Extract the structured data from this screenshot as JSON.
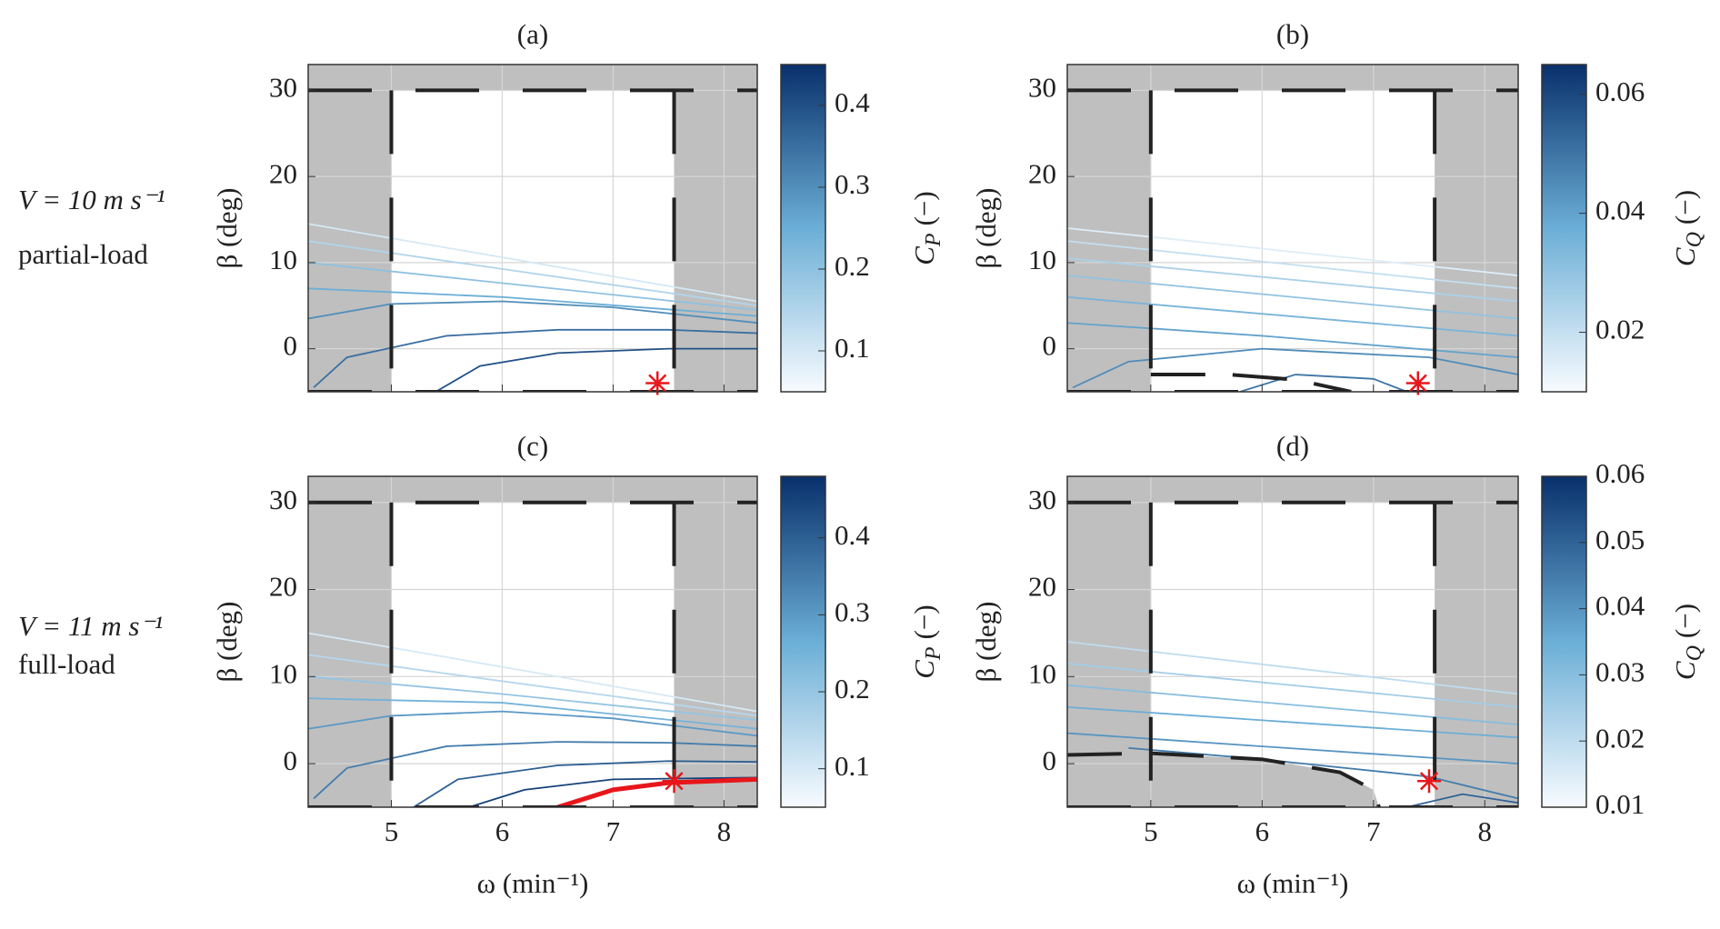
{
  "row_labels": [
    {
      "condition": "V = 10 m s⁻¹",
      "regime": "partial-load"
    },
    {
      "condition": "V = 11 m s⁻¹",
      "regime": "full-load"
    }
  ],
  "chart_data": [
    {
      "type": "contour",
      "title": "(a)",
      "ylabel": "β (deg)",
      "xlim": [
        4.25,
        8.3
      ],
      "ylim": [
        -5,
        33
      ],
      "xticks": [
        5,
        6,
        7,
        8
      ],
      "yticks": [
        0,
        10,
        20,
        30
      ],
      "grid": true,
      "bounds": {
        "omega": [
          5,
          7.55
        ],
        "beta": [
          -5,
          30
        ]
      },
      "optimum": {
        "x": 7.4,
        "y": -4,
        "color": "#e8161b"
      },
      "colorbar": {
        "symbol": "C",
        "subscript": "P",
        "unit": "(−)",
        "lim": [
          0.05,
          0.45
        ],
        "ticks": [
          0.1,
          0.2,
          0.3,
          0.4
        ]
      },
      "contours": [
        {
          "level": 0.1,
          "x": [
            4.25,
            8.3
          ],
          "y": [
            14.5,
            5.5
          ]
        },
        {
          "level": 0.15,
          "x": [
            4.25,
            8.3
          ],
          "y": [
            12.5,
            5
          ]
        },
        {
          "level": 0.2,
          "x": [
            4.25,
            8.3
          ],
          "y": [
            10,
            4.5
          ]
        },
        {
          "level": 0.25,
          "x": [
            4.25,
            6,
            8.3
          ],
          "y": [
            7,
            6,
            3.8
          ]
        },
        {
          "level": 0.3,
          "x": [
            4.25,
            5,
            6,
            7,
            8.3
          ],
          "y": [
            3.5,
            5.2,
            5.5,
            4.8,
            3
          ]
        },
        {
          "level": 0.35,
          "x": [
            4.3,
            4.6,
            5.5,
            6.5,
            7.5,
            8.3
          ],
          "y": [
            -4.5,
            -1,
            1.5,
            2.2,
            2.2,
            1.8
          ]
        },
        {
          "level": 0.4,
          "x": [
            5.4,
            5.8,
            6.5,
            7.5,
            8.3
          ],
          "y": [
            -5,
            -2,
            -0.5,
            0,
            0
          ]
        }
      ]
    },
    {
      "type": "contour",
      "title": "(b)",
      "ylabel": "β (deg)",
      "xlim": [
        4.25,
        8.3
      ],
      "ylim": [
        -5,
        33
      ],
      "xticks": [
        5,
        6,
        7,
        8
      ],
      "yticks": [
        0,
        10,
        20,
        30
      ],
      "grid": true,
      "bounds": {
        "omega": [
          5,
          7.55
        ],
        "beta": [
          -5,
          30
        ]
      },
      "optimum": {
        "x": 7.4,
        "y": -4,
        "color": "#e8161b"
      },
      "constraint": {
        "x": [
          5,
          5.7,
          6.3,
          6.8
        ],
        "y": [
          -3,
          -3,
          -3.6,
          -5
        ]
      },
      "colorbar": {
        "symbol": "C",
        "subscript": "Q",
        "unit": "(−)",
        "lim": [
          0.01,
          0.065
        ],
        "ticks": [
          0.02,
          0.04,
          0.06
        ]
      },
      "contours": [
        {
          "level": 0.015,
          "x": [
            4.25,
            8.3
          ],
          "y": [
            14,
            8.5
          ]
        },
        {
          "level": 0.02,
          "x": [
            4.25,
            8.3
          ],
          "y": [
            12.5,
            7
          ]
        },
        {
          "level": 0.025,
          "x": [
            4.25,
            8.3
          ],
          "y": [
            10.5,
            5.5
          ]
        },
        {
          "level": 0.03,
          "x": [
            4.25,
            8.3
          ],
          "y": [
            8.5,
            3.5
          ]
        },
        {
          "level": 0.035,
          "x": [
            4.25,
            8.3
          ],
          "y": [
            6,
            1.5
          ]
        },
        {
          "level": 0.04,
          "x": [
            4.25,
            6,
            8.3
          ],
          "y": [
            3,
            1.5,
            -1
          ]
        },
        {
          "level": 0.045,
          "x": [
            4.3,
            4.8,
            6,
            7.5,
            8.3
          ],
          "y": [
            -4.5,
            -1.5,
            0,
            -1,
            -3
          ]
        },
        {
          "level": 0.05,
          "x": [
            5.8,
            6.3,
            7,
            7.3
          ],
          "y": [
            -5,
            -3,
            -3.5,
            -5
          ]
        }
      ]
    },
    {
      "type": "contour",
      "title": "(c)",
      "ylabel": "β (deg)",
      "xlabel": "ω (min⁻¹)",
      "xlim": [
        4.25,
        8.3
      ],
      "ylim": [
        -5,
        33
      ],
      "xticks": [
        5,
        6,
        7,
        8
      ],
      "yticks": [
        0,
        10,
        20,
        30
      ],
      "grid": true,
      "bounds": {
        "omega": [
          5,
          7.55
        ],
        "beta": [
          -5,
          30
        ]
      },
      "optimum": {
        "x": 7.55,
        "y": -2,
        "color": "#e8161b"
      },
      "max_curve": {
        "x": [
          6.5,
          7,
          7.5,
          8.3
        ],
        "y": [
          -5,
          -3,
          -2.2,
          -1.8
        ],
        "color": "#e8161b"
      },
      "colorbar": {
        "symbol": "C",
        "subscript": "P",
        "unit": "(−)",
        "lim": [
          0.05,
          0.48
        ],
        "ticks": [
          0.1,
          0.2,
          0.3,
          0.4
        ]
      },
      "contours": [
        {
          "level": 0.1,
          "x": [
            4.25,
            8.3
          ],
          "y": [
            15,
            6
          ]
        },
        {
          "level": 0.15,
          "x": [
            4.25,
            8.3
          ],
          "y": [
            12.5,
            5.5
          ]
        },
        {
          "level": 0.2,
          "x": [
            4.25,
            6,
            8.3
          ],
          "y": [
            10,
            8,
            5
          ]
        },
        {
          "level": 0.25,
          "x": [
            4.25,
            6,
            8.3
          ],
          "y": [
            7.5,
            7,
            4
          ]
        },
        {
          "level": 0.3,
          "x": [
            4.25,
            5,
            6,
            7,
            8.3
          ],
          "y": [
            4,
            5.5,
            6,
            5.2,
            3.2
          ]
        },
        {
          "level": 0.35,
          "x": [
            4.3,
            4.6,
            5.5,
            6.5,
            7.5,
            8.3
          ],
          "y": [
            -4,
            -0.5,
            2,
            2.5,
            2.4,
            2
          ]
        },
        {
          "level": 0.4,
          "x": [
            5.2,
            5.6,
            6.5,
            7.5,
            8.3
          ],
          "y": [
            -5,
            -1.8,
            -0.2,
            0.3,
            0.2
          ]
        },
        {
          "level": 0.45,
          "x": [
            5.7,
            6.2,
            7,
            8.3
          ],
          "y": [
            -5,
            -3,
            -1.8,
            -1.6
          ]
        }
      ]
    },
    {
      "type": "contour",
      "title": "(d)",
      "ylabel": "β (deg)",
      "xlabel": "ω (min⁻¹)",
      "xlim": [
        4.25,
        8.3
      ],
      "ylim": [
        -5,
        33
      ],
      "xticks": [
        5,
        6,
        7,
        8
      ],
      "yticks": [
        0,
        10,
        20,
        30
      ],
      "grid": true,
      "bounds": {
        "omega": [
          5,
          7.55
        ],
        "beta": [
          -5,
          30
        ]
      },
      "optimum": {
        "x": 7.5,
        "y": -2,
        "color": "#e8161b"
      },
      "constraint": {
        "x": [
          4.25,
          5,
          6,
          6.7,
          7,
          7.05
        ],
        "y": [
          1,
          1.2,
          0.5,
          -1,
          -3,
          -5
        ]
      },
      "colorbar": {
        "symbol": "C",
        "subscript": "Q",
        "unit": "(−)",
        "lim": [
          0.01,
          0.06
        ],
        "ticks": [
          0.01,
          0.02,
          0.03,
          0.04,
          0.05,
          0.06
        ]
      },
      "contours": [
        {
          "level": 0.02,
          "x": [
            4.25,
            8.3
          ],
          "y": [
            14,
            8
          ]
        },
        {
          "level": 0.025,
          "x": [
            4.25,
            8.3
          ],
          "y": [
            11.5,
            6.5
          ]
        },
        {
          "level": 0.03,
          "x": [
            4.25,
            8.3
          ],
          "y": [
            9,
            4.5
          ]
        },
        {
          "level": 0.035,
          "x": [
            4.25,
            8.3
          ],
          "y": [
            6.5,
            3
          ]
        },
        {
          "level": 0.04,
          "x": [
            4.25,
            8.3
          ],
          "y": [
            3.5,
            0
          ]
        },
        {
          "level": 0.045,
          "x": [
            4.8,
            6,
            7.5,
            8.3
          ],
          "y": [
            1.8,
            0.5,
            -1.5,
            -4
          ]
        },
        {
          "level": 0.05,
          "x": [
            7.3,
            7.8,
            8.3
          ],
          "y": [
            -5,
            -3.5,
            -4.5
          ]
        }
      ]
    }
  ]
}
